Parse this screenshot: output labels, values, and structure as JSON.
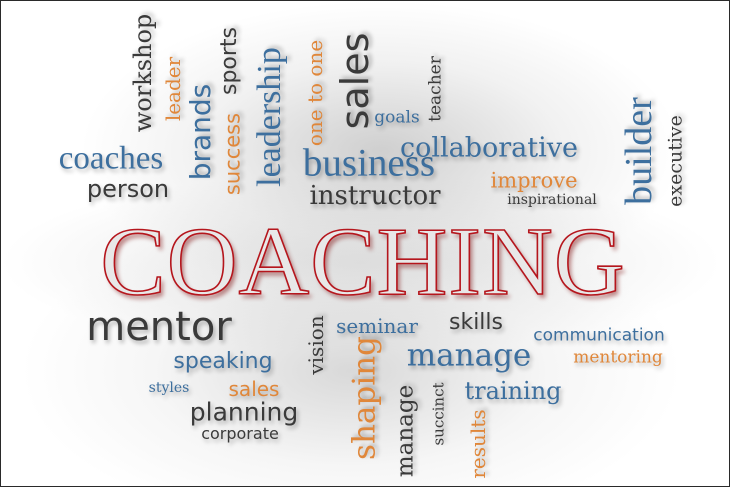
{
  "main_word": "COACHING",
  "colors": {
    "red": "#b5161d",
    "blue": "#3d6f9e",
    "orange": "#e0873a",
    "dark": "#3a3a3a",
    "gray": "#555555"
  },
  "words": {
    "workshop": "workshop",
    "leader": "leader",
    "brands": "brands",
    "sports": "sports",
    "success": "success",
    "leadership": "leadership",
    "one_to_one": "one to one",
    "sales_top": "sales",
    "goals": "goals",
    "teacher": "teacher",
    "builder": "builder",
    "executive": "executive",
    "coaches": "coaches",
    "person": "person",
    "business": "business",
    "collaborative": "collaborative",
    "improve": "improve",
    "instructor": "instructor",
    "inspirational": "inspirational",
    "mentor": "mentor",
    "vision": "vision",
    "seminar": "seminar",
    "skills": "skills",
    "communication": "communication",
    "manage_blue": "manage",
    "mentoring": "mentoring",
    "speaking": "speaking",
    "styles": "styles",
    "sales_bottom": "sales",
    "shaping": "shaping",
    "manage_vertical": "manage",
    "succinct": "succinct",
    "training": "training",
    "results": "results",
    "planning": "planning",
    "corporate": "corporate"
  }
}
